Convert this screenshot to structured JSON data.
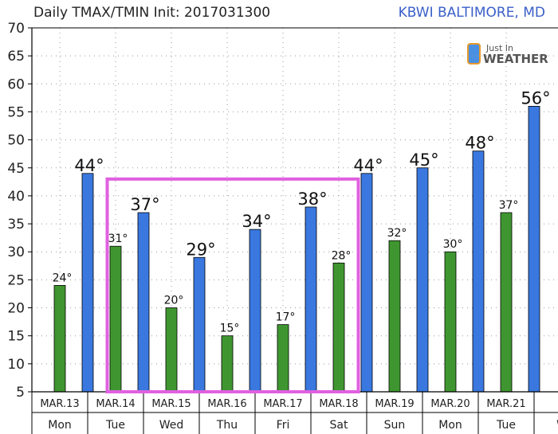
{
  "chart_data": {
    "type": "bar",
    "title": "Daily TMAX/TMIN Init: 2017031300",
    "station": "KBWI BALTIMORE, MD",
    "dates": [
      "MAR.13",
      "MAR.14",
      "MAR.15",
      "MAR.16",
      "MAR.17",
      "MAR.18",
      "MAR.19",
      "MAR.20",
      "MAR.21",
      "M"
    ],
    "weekdays": [
      "Mon",
      "Tue",
      "Wed",
      "Thu",
      "Fri",
      "Sat",
      "Sun",
      "Mon",
      "Tue",
      "W"
    ],
    "yticks": [
      5,
      10,
      15,
      20,
      25,
      30,
      35,
      40,
      45,
      50,
      55,
      60,
      65,
      70
    ],
    "ylim": [
      5,
      70
    ],
    "grid": true,
    "series": [
      {
        "name": "TMAX",
        "color": "#3a78e0",
        "points": [
          {
            "x": 13.5,
            "y": 44,
            "label": "44°"
          },
          {
            "x": 14.5,
            "y": 37,
            "label": "37°"
          },
          {
            "x": 15.5,
            "y": 29,
            "label": "29°"
          },
          {
            "x": 16.5,
            "y": 34,
            "label": "34°"
          },
          {
            "x": 17.5,
            "y": 38,
            "label": "38°"
          },
          {
            "x": 18.5,
            "y": 44,
            "label": "44°"
          },
          {
            "x": 19.5,
            "y": 45,
            "label": "45°"
          },
          {
            "x": 20.5,
            "y": 48,
            "label": "48°"
          },
          {
            "x": 21.5,
            "y": 56,
            "label": "56°"
          }
        ]
      },
      {
        "name": "TMIN",
        "color": "#3f9630",
        "points": [
          {
            "x": 13,
            "y": 24,
            "label": "24°"
          },
          {
            "x": 14,
            "y": 31,
            "label": "31°"
          },
          {
            "x": 15,
            "y": 20,
            "label": "20°"
          },
          {
            "x": 16,
            "y": 15,
            "label": "15°"
          },
          {
            "x": 17,
            "y": 17,
            "label": "17°"
          },
          {
            "x": 18,
            "y": 28,
            "label": "28°"
          },
          {
            "x": 19,
            "y": 32,
            "label": "32°"
          },
          {
            "x": 20,
            "y": 30,
            "label": "30°"
          },
          {
            "x": 21,
            "y": 37,
            "label": "37°"
          }
        ]
      }
    ],
    "highlight": {
      "x_range": [
        13.85,
        18.35
      ],
      "y_range": [
        5,
        43
      ],
      "color": "#e060e0"
    }
  },
  "logo": {
    "line1": "Just In",
    "line2": "WEATHER",
    "icon": "phone-icon"
  }
}
